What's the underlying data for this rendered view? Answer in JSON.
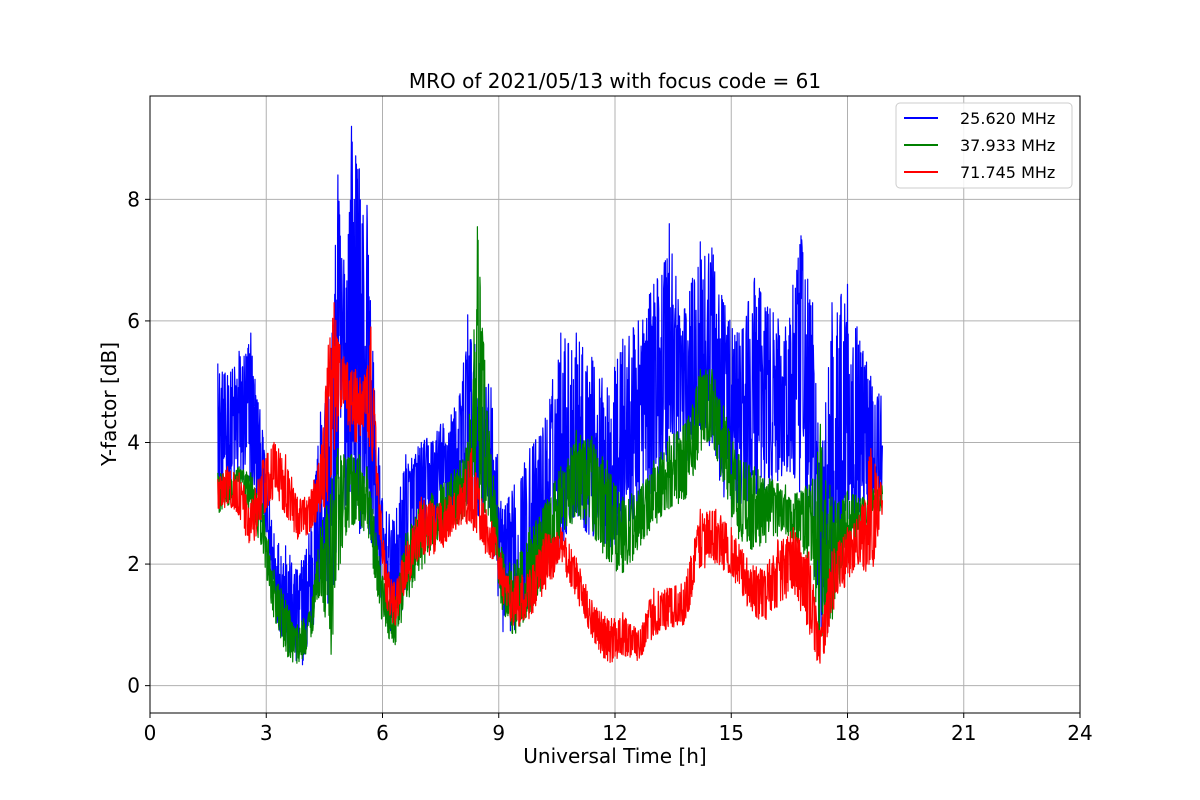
{
  "chart_data": {
    "type": "line",
    "title": "MRO of 2021/05/13 with focus code = 61",
    "xlabel": "Universal Time [h]",
    "ylabel": "Y-factor [dB]",
    "xlim": [
      0,
      24
    ],
    "ylim": [
      -0.45,
      9.7
    ],
    "xticks": [
      0,
      3,
      6,
      9,
      12,
      15,
      18,
      21,
      24
    ],
    "yticks": [
      0,
      2,
      4,
      6,
      8
    ],
    "grid": true,
    "legend_position": "top-right",
    "series": [
      {
        "name": "25.620 MHz",
        "color": "#0000ff",
        "x": [
          1.75,
          2.0,
          2.3,
          2.6,
          2.9,
          3.2,
          3.5,
          3.8,
          4.1,
          4.4,
          4.7,
          4.85,
          5.0,
          5.2,
          5.4,
          5.6,
          5.75,
          6.0,
          6.3,
          6.6,
          7.0,
          7.5,
          8.0,
          8.2,
          8.5,
          8.8,
          9.1,
          9.4,
          9.8,
          10.2,
          10.6,
          11.0,
          11.4,
          11.8,
          12.2,
          12.6,
          13.0,
          13.4,
          13.8,
          14.2,
          14.5,
          14.8,
          15.2,
          15.6,
          16.0,
          16.4,
          16.8,
          17.1,
          17.3,
          17.6,
          18.0,
          18.4,
          18.9
        ],
        "y_low": [
          3.0,
          3.1,
          3.2,
          3.2,
          2.6,
          1.2,
          0.6,
          0.2,
          0.5,
          1.5,
          1.0,
          2.5,
          2.8,
          3.0,
          2.5,
          2.6,
          2.2,
          1.2,
          0.6,
          1.5,
          2.3,
          2.6,
          2.8,
          2.7,
          2.8,
          2.5,
          0.8,
          0.9,
          1.3,
          1.8,
          2.3,
          2.7,
          2.4,
          2.2,
          2.4,
          2.8,
          3.1,
          3.5,
          3.6,
          4.0,
          3.9,
          3.1,
          2.8,
          2.9,
          3.2,
          3.4,
          2.9,
          2.3,
          0.3,
          1.2,
          2.6,
          2.9,
          2.9
        ],
        "y_high": [
          5.3,
          5.1,
          5.5,
          5.8,
          4.2,
          2.5,
          2.3,
          1.9,
          2.5,
          4.5,
          5.8,
          8.4,
          7.0,
          9.2,
          8.5,
          7.9,
          5.5,
          3.0,
          2.7,
          3.8,
          4.0,
          4.3,
          4.8,
          6.1,
          5.3,
          4.9,
          2.9,
          3.3,
          3.9,
          4.4,
          5.8,
          5.8,
          5.4,
          4.9,
          5.7,
          6.0,
          6.6,
          7.6,
          6.2,
          7.3,
          7.2,
          6.3,
          5.8,
          6.7,
          6.2,
          5.9,
          7.4,
          6.3,
          3.6,
          6.3,
          6.6,
          5.5,
          5.0
        ]
      },
      {
        "name": "37.933 MHz",
        "color": "#008000",
        "x": [
          1.75,
          2.0,
          2.3,
          2.6,
          2.9,
          3.2,
          3.5,
          3.8,
          4.1,
          4.4,
          4.7,
          4.85,
          5.0,
          5.2,
          5.4,
          5.6,
          5.75,
          6.0,
          6.3,
          6.6,
          7.0,
          7.5,
          8.0,
          8.2,
          8.45,
          8.8,
          9.1,
          9.4,
          9.8,
          10.2,
          10.6,
          11.0,
          11.4,
          11.8,
          12.2,
          12.6,
          13.0,
          13.4,
          13.8,
          14.2,
          14.5,
          14.8,
          15.2,
          15.6,
          16.0,
          16.4,
          16.8,
          17.1,
          17.3,
          17.6,
          18.0,
          18.4,
          18.9
        ],
        "y_low": [
          2.8,
          2.9,
          3.0,
          2.8,
          2.2,
          1.0,
          0.5,
          0.3,
          0.6,
          1.5,
          0.4,
          1.8,
          2.3,
          2.6,
          2.6,
          2.5,
          1.9,
          1.0,
          0.6,
          1.3,
          1.9,
          2.4,
          2.7,
          2.8,
          3.0,
          2.6,
          1.1,
          0.8,
          1.2,
          1.7,
          2.3,
          2.8,
          2.5,
          2.0,
          1.8,
          2.2,
          2.6,
          2.9,
          3.0,
          3.8,
          4.0,
          3.2,
          2.4,
          2.2,
          2.4,
          2.5,
          2.2,
          2.0,
          0.0,
          1.0,
          2.2,
          2.5,
          2.9
        ],
        "y_high": [
          3.5,
          3.5,
          3.6,
          3.5,
          3.0,
          1.9,
          1.4,
          1.0,
          1.2,
          2.6,
          3.4,
          3.9,
          3.8,
          3.8,
          3.8,
          3.6,
          2.9,
          1.8,
          1.4,
          2.5,
          3.0,
          3.3,
          3.7,
          4.0,
          7.55,
          3.8,
          2.2,
          2.0,
          2.6,
          3.0,
          3.6,
          4.2,
          4.1,
          3.7,
          3.1,
          3.2,
          3.7,
          4.1,
          4.3,
          5.2,
          5.2,
          4.6,
          3.8,
          3.6,
          3.4,
          3.3,
          3.2,
          3.4,
          4.3,
          3.1,
          3.2,
          3.1,
          3.4
        ]
      },
      {
        "name": "71.745 MHz",
        "color": "#ff0000",
        "x": [
          1.75,
          2.0,
          2.3,
          2.6,
          2.9,
          3.2,
          3.5,
          3.8,
          4.1,
          4.4,
          4.6,
          4.75,
          4.9,
          5.1,
          5.3,
          5.5,
          5.7,
          5.9,
          6.1,
          6.3,
          6.6,
          7.0,
          7.5,
          8.0,
          8.3,
          8.6,
          8.9,
          9.2,
          9.5,
          9.8,
          10.2,
          10.6,
          11.0,
          11.4,
          11.8,
          12.2,
          12.6,
          13.0,
          13.4,
          13.8,
          14.2,
          14.6,
          15.0,
          15.4,
          15.8,
          16.2,
          16.6,
          17.0,
          17.3,
          17.6,
          18.0,
          18.3,
          18.6,
          18.9
        ],
        "y_low": [
          2.9,
          2.9,
          2.8,
          2.2,
          2.6,
          3.1,
          2.8,
          2.4,
          2.5,
          2.8,
          3.0,
          3.8,
          4.4,
          4.3,
          3.9,
          4.2,
          3.8,
          2.6,
          1.3,
          0.9,
          1.6,
          2.1,
          2.2,
          2.6,
          2.6,
          2.2,
          2.0,
          1.1,
          0.9,
          1.1,
          1.5,
          2.0,
          1.4,
          0.8,
          0.3,
          0.5,
          0.4,
          0.8,
          0.9,
          1.0,
          1.9,
          2.0,
          1.8,
          1.3,
          1.0,
          1.3,
          1.5,
          0.9,
          0.2,
          1.2,
          1.7,
          2.0,
          1.7,
          2.8
        ],
        "y_high": [
          3.4,
          3.6,
          3.5,
          3.0,
          3.7,
          4.0,
          3.8,
          3.1,
          3.1,
          3.8,
          5.6,
          6.3,
          5.6,
          5.3,
          5.2,
          5.0,
          5.9,
          3.3,
          2.0,
          1.7,
          2.3,
          3.1,
          3.0,
          3.3,
          3.9,
          3.0,
          2.6,
          1.8,
          1.8,
          1.9,
          2.5,
          2.6,
          2.1,
          1.4,
          1.1,
          1.2,
          0.9,
          1.6,
          1.6,
          1.7,
          2.9,
          2.9,
          2.6,
          2.1,
          1.9,
          2.4,
          2.6,
          2.2,
          0.9,
          2.2,
          2.6,
          2.8,
          3.9,
          3.3
        ]
      }
    ]
  }
}
